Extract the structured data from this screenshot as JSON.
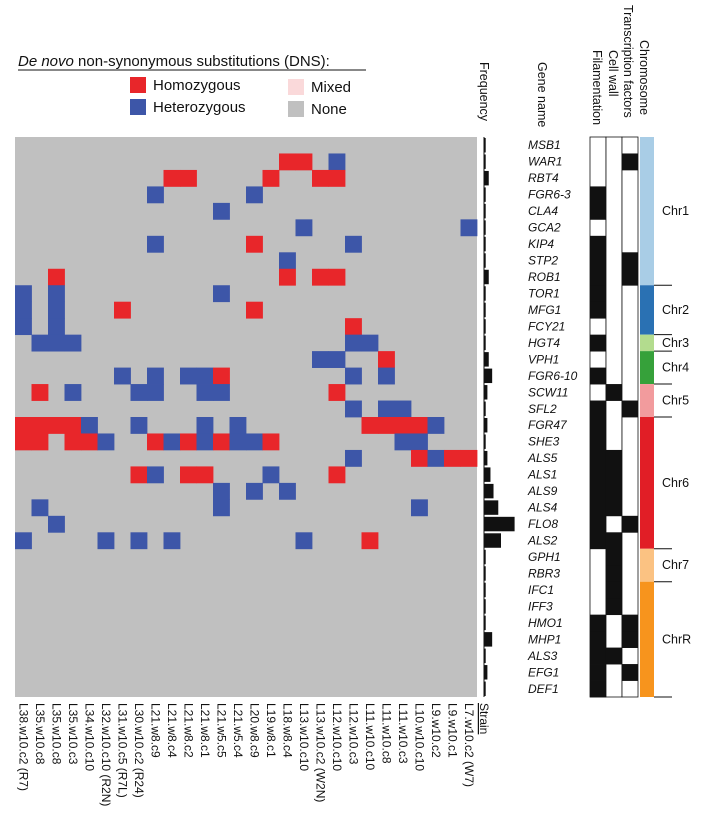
{
  "chart_data": {
    "type": "heatmap",
    "legend": {
      "title_italic": "De novo",
      "title_rest": " non-synonymous substitutions (DNS):",
      "entries": [
        {
          "key": "hom",
          "label": "Homozygous",
          "color": "#e8262a"
        },
        {
          "key": "mix",
          "label": "Mixed",
          "color": "#fad9da"
        },
        {
          "key": "het",
          "label": "Heterozygous",
          "color": "#3d56a8"
        },
        {
          "key": "none",
          "label": "None",
          "color": "#c0c0c0"
        }
      ]
    },
    "headers": {
      "frequency": "Frequency",
      "gene_name": "Gene name",
      "annotations": [
        "Filamentation",
        "Cell wall",
        "Transcription factors"
      ],
      "chromosome": "Chromosome",
      "strain": "Strain"
    },
    "strains": [
      "L38.w10.c2 (R7)",
      "L35.w10.c8",
      "L35.w10.c8",
      "L35.w10.c3",
      "L34.w10.c10",
      "L32.w10.c10 (R2N)",
      "L31.w10.c5 (R7L)",
      "L30.w10.c2 (R24)",
      "L21.w8.c9",
      "L21.w8.c4",
      "L21.w8.c2",
      "L21.w8.c1",
      "L21.w5.c5",
      "L21.w5.c4",
      "L20.w8.c9",
      "L19.w8.c1",
      "L18.w8.c4",
      "L13.w10.c10",
      "L13.w10.c2 (W2N)",
      "L12.w10.c10",
      "L12.w10.c3",
      "L11.w10.c10",
      "L11.w10.c8",
      "L11.w10.c3",
      "L10.w10.c10",
      "L9.w10.c2",
      "L9.w10.c1",
      "L7.w10.c2 (W7)"
    ],
    "genes": [
      "MSB1",
      "WAR1",
      "RBT4",
      "FGR6-3",
      "CLA4",
      "GCA2",
      "KIP4",
      "STP2",
      "ROB1",
      "TOR1",
      "MFG1",
      "FCY21",
      "HGT4",
      "VPH1",
      "FGR6-10",
      "SCW11",
      "SFL2",
      "FGR47",
      "SHE3",
      "ALS5",
      "ALS1",
      "ALS9",
      "ALS4",
      "FLO8",
      "ALS2",
      "GPH1",
      "RBR3",
      "IFC1",
      "IFF3",
      "HMO1",
      "MHP1",
      "ALS3",
      "EFG1",
      "DEF1"
    ],
    "matrix": [
      "............................",
      "................HH.X........",
      ".........HH....H..HH........",
      "........X.....X.............",
      "............X...............",
      ".................X.........X",
      "........X.....H.....X.......",
      "................X...........",
      "..H.............H.HH........",
      "X.X.........X...............",
      "X.X...H.......H.............",
      "X.X.................H.......",
      ".XXX................XX......",
      "..................XX..H.....",
      "......X.X.XXH.......X.X.....",
      ".H.X...XX..XX......H........",
      "....................X.XX....",
      "HHHHX..X...X.X.......HHHHX..",
      "HH.HHX..HXHXHXXH.......XX...",
      "....................X...HXHH",
      ".......HX.HH...X...H........",
      "............X.X.X...........",
      ".X..........X...........X...",
      "..X.........................",
      "X....X.X.X.......X...H......",
      "............................",
      "............................",
      "............................",
      "............................",
      "............................",
      "............................",
      "............................",
      "............................",
      "............................"
    ],
    "frequency": [
      0.05,
      0.05,
      0.14,
      0.05,
      0.05,
      0.05,
      0.05,
      0.05,
      0.14,
      0.05,
      0.05,
      0.05,
      0.05,
      0.14,
      0.24,
      0.1,
      0.05,
      0.1,
      0.05,
      0.1,
      0.19,
      0.28,
      0.42,
      0.9,
      0.5,
      0.05,
      0.05,
      0.05,
      0.05,
      0.05,
      0.24,
      0.05,
      0.1,
      0.05
    ],
    "annotations": {
      "filamentation": [
        0,
        0,
        0,
        1,
        1,
        0,
        1,
        1,
        1,
        1,
        1,
        0,
        1,
        0,
        1,
        0,
        1,
        1,
        1,
        1,
        1,
        1,
        1,
        1,
        1,
        0,
        0,
        0,
        0,
        1,
        1,
        1,
        1,
        1
      ],
      "cell_wall": [
        0,
        0,
        0,
        0,
        0,
        0,
        0,
        0,
        0,
        0,
        0,
        0,
        0,
        0,
        0,
        1,
        0,
        0,
        0,
        1,
        1,
        1,
        1,
        0,
        1,
        1,
        1,
        1,
        1,
        0,
        0,
        1,
        0,
        0
      ],
      "transcription_factors": [
        0,
        1,
        0,
        0,
        0,
        0,
        0,
        1,
        1,
        0,
        0,
        0,
        0,
        0,
        0,
        0,
        1,
        0,
        0,
        0,
        0,
        0,
        0,
        1,
        0,
        0,
        0,
        0,
        0,
        1,
        1,
        0,
        1,
        0
      ]
    },
    "chromosomes": [
      {
        "name": "Chr1",
        "count": 9,
        "color": "#a9cde6"
      },
      {
        "name": "Chr2",
        "count": 3,
        "color": "#2a71b3"
      },
      {
        "name": "Chr3",
        "count": 1,
        "color": "#b3dc8e"
      },
      {
        "name": "Chr4",
        "count": 2,
        "color": "#36a13a"
      },
      {
        "name": "Chr5",
        "count": 2,
        "color": "#f29b9d"
      },
      {
        "name": "Chr6",
        "count": 8,
        "color": "#e11e26"
      },
      {
        "name": "Chr7",
        "count": 2,
        "color": "#fbc282"
      },
      {
        "name": "ChrR",
        "count": 7,
        "color": "#f7941d"
      }
    ]
  }
}
